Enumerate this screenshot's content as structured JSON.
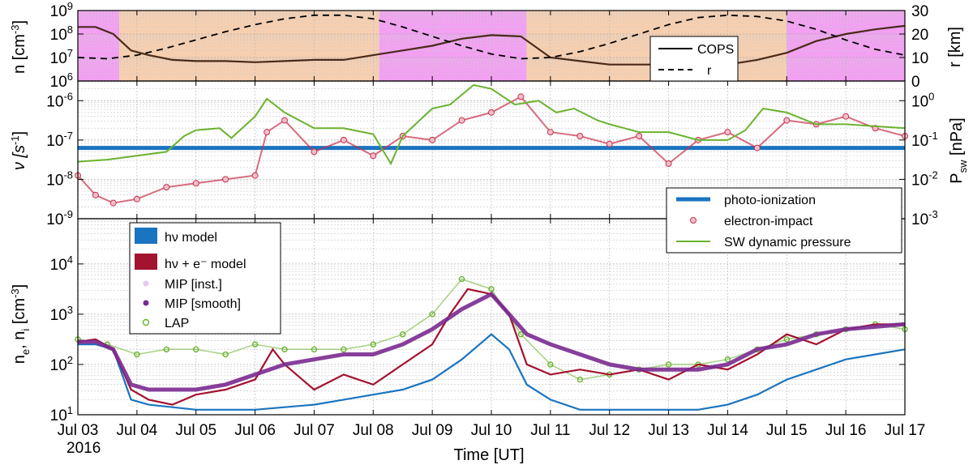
{
  "colors": {
    "magenta_shade": "#f2a0f2",
    "orange_shade": "#f6cfb0",
    "cops": "#4a2a1a",
    "photo": "#1a74c0",
    "impact_edge": "#c8304a",
    "impact_fill": "#f2c0cc",
    "sw": "#6ab32e",
    "model_e": "#a3122e",
    "mip_inst": "#e6c8f2",
    "mip_smooth": "#7a2a90",
    "lap": "#6ab32e"
  },
  "time_axis": {
    "ticks": [
      "Jul 03",
      "Jul 04",
      "Jul 05",
      "Jul 06",
      "Jul 07",
      "Jul 08",
      "Jul 09",
      "Jul 10",
      "Jul 11",
      "Jul 12",
      "Jul 13",
      "Jul 14",
      "Jul 15",
      "Jul 16",
      "Jul 17"
    ],
    "year": "2016",
    "label": "Time [UT]",
    "start_day": 3,
    "end_day": 17
  },
  "chart_data": [
    {
      "type": "line",
      "panel": "top",
      "ylabel_left": "n [cm",
      "ylabel_left_sup": "-3",
      "ylabel_left_end": "]",
      "ylabel_right": "r [km]",
      "yticks_left": [
        {
          "base": "10",
          "exp": "9"
        },
        {
          "base": "10",
          "exp": "8"
        },
        {
          "base": "10",
          "exp": "7"
        },
        {
          "base": "10",
          "exp": "6"
        }
      ],
      "ylim_left_log10": [
        6,
        9
      ],
      "yticks_right": [
        "30",
        "20",
        "10",
        "0"
      ],
      "ylim_right": [
        0,
        30
      ],
      "shaded_intervals_days": [
        {
          "start": 3.0,
          "end": 3.7,
          "kind": "magenta"
        },
        {
          "start": 3.7,
          "end": 8.1,
          "kind": "orange"
        },
        {
          "start": 8.1,
          "end": 10.6,
          "kind": "magenta"
        },
        {
          "start": 10.6,
          "end": 15.0,
          "kind": "orange"
        },
        {
          "start": 15.0,
          "end": 17.0,
          "kind": "magenta"
        }
      ],
      "series": [
        {
          "name": "COPS",
          "style": "solid",
          "x": [
            3.0,
            3.3,
            3.6,
            3.9,
            4.2,
            4.6,
            5.0,
            5.5,
            6.0,
            6.5,
            7.0,
            7.5,
            8.0,
            8.5,
            9.0,
            9.5,
            10.0,
            10.5,
            11.0,
            11.5,
            12.0,
            12.5,
            13.0,
            13.5,
            14.0,
            14.5,
            15.0,
            15.5,
            16.0,
            16.5,
            17.0
          ],
          "y_log10": [
            8.3,
            8.3,
            8.0,
            7.3,
            7.1,
            6.9,
            6.85,
            6.85,
            6.8,
            6.85,
            6.9,
            6.9,
            7.1,
            7.3,
            7.5,
            7.8,
            7.95,
            7.9,
            7.0,
            6.85,
            6.7,
            6.7,
            6.7,
            6.65,
            6.7,
            6.9,
            7.2,
            7.7,
            8.0,
            8.2,
            8.35
          ]
        },
        {
          "name": "r",
          "style": "dashed",
          "x": [
            3.0,
            3.5,
            4.0,
            4.5,
            5.0,
            5.5,
            6.0,
            6.5,
            7.0,
            7.5,
            8.0,
            8.5,
            9.0,
            9.5,
            10.0,
            10.5,
            11.0,
            11.5,
            12.0,
            12.5,
            13.0,
            13.5,
            14.0,
            14.5,
            15.0,
            15.5,
            16.0,
            16.5,
            17.0
          ],
          "y": [
            10,
            9.5,
            11,
            14,
            17.5,
            21,
            24,
            26.5,
            28,
            28,
            26.5,
            23,
            19,
            15,
            11.5,
            9.5,
            10,
            12.5,
            16,
            20,
            24,
            27,
            28,
            27.5,
            25.5,
            22,
            17.5,
            13.5,
            11
          ]
        }
      ],
      "legend": [
        "COPS",
        "r"
      ],
      "legend_position": "top-right"
    },
    {
      "type": "line",
      "panel": "middle",
      "ylabel_left": "ν [s",
      "ylabel_left_sup": "-1",
      "ylabel_left_end": "]",
      "ylabel_right": "P",
      "ylabel_right_sub": "sw",
      "ylabel_right_end": " [nPa]",
      "yticks_left": [
        {
          "base": "10",
          "exp": "-6"
        },
        {
          "base": "10",
          "exp": "-7"
        },
        {
          "base": "10",
          "exp": "-8"
        },
        {
          "base": "10",
          "exp": "-9"
        }
      ],
      "ylim_left_log10": [
        -9,
        -5.5
      ],
      "yticks_right": [
        {
          "base": "10",
          "exp": "0"
        },
        {
          "base": "10",
          "exp": "-1"
        },
        {
          "base": "10",
          "exp": "-2"
        },
        {
          "base": "10",
          "exp": "-3"
        }
      ],
      "ylim_right_log10": [
        -3,
        0.5
      ],
      "series": [
        {
          "name": "photo-ionization",
          "axis": "left",
          "x": [
            3.0,
            17.0
          ],
          "y_log10": [
            -7.2,
            -7.2
          ]
        },
        {
          "name": "electron-impact",
          "axis": "left",
          "x": [
            3.0,
            3.3,
            3.6,
            4.0,
            4.5,
            5.0,
            5.5,
            6.0,
            6.2,
            6.5,
            7.0,
            7.5,
            8.0,
            8.5,
            9.0,
            9.5,
            10.0,
            10.5,
            11.0,
            11.5,
            12.0,
            12.5,
            13.0,
            13.5,
            14.0,
            14.5,
            15.0,
            15.5,
            16.0,
            16.5,
            17.0
          ],
          "y_log10": [
            -7.9,
            -8.4,
            -8.6,
            -8.5,
            -8.2,
            -8.1,
            -8.0,
            -7.9,
            -6.8,
            -6.5,
            -7.3,
            -7.0,
            -7.4,
            -6.9,
            -7.0,
            -6.5,
            -6.3,
            -5.9,
            -6.8,
            -6.9,
            -7.1,
            -6.9,
            -7.6,
            -7.0,
            -6.8,
            -7.2,
            -6.5,
            -6.6,
            -6.4,
            -6.7,
            -6.9
          ]
        },
        {
          "name": "SW dynamic pressure",
          "axis": "right",
          "x": [
            3.0,
            3.5,
            4.0,
            4.5,
            4.8,
            5.0,
            5.4,
            5.6,
            6.0,
            6.2,
            6.5,
            7.0,
            7.5,
            8.0,
            8.3,
            8.5,
            9.0,
            9.3,
            9.7,
            10.0,
            10.4,
            10.8,
            11.1,
            11.4,
            11.8,
            12.0,
            12.5,
            13.0,
            13.5,
            14.0,
            14.3,
            14.6,
            15.0,
            15.5,
            16.0,
            16.5,
            17.0
          ],
          "y_log10": [
            -1.55,
            -1.5,
            -1.4,
            -1.3,
            -0.9,
            -0.75,
            -0.7,
            -0.95,
            -0.4,
            0.05,
            -0.3,
            -0.7,
            -0.7,
            -0.85,
            -1.6,
            -0.9,
            -0.2,
            -0.1,
            0.4,
            0.3,
            -0.1,
            0.0,
            -0.3,
            -0.2,
            -0.5,
            -0.6,
            -0.8,
            -0.8,
            -1.0,
            -1.0,
            -0.75,
            -0.2,
            -0.3,
            -0.6,
            -0.6,
            -0.65,
            -0.7
          ]
        }
      ],
      "legend": [
        "photo-ionization",
        "electron-impact",
        "SW dynamic pressure"
      ],
      "legend_position": "bottom-right"
    },
    {
      "type": "line",
      "panel": "bottom",
      "ylabel": "n",
      "ylabel_sub1": "e",
      "ylabel_mid": ", n",
      "ylabel_sub2": "i",
      "ylabel_unit": " [cm",
      "ylabel_sup": "-3",
      "ylabel_end": "]",
      "yticks": [
        {
          "base": "10",
          "exp": "4"
        },
        {
          "base": "10",
          "exp": "3"
        },
        {
          "base": "10",
          "exp": "2"
        },
        {
          "base": "10",
          "exp": "1"
        }
      ],
      "ylim_log10": [
        1,
        4.9
      ],
      "series": [
        {
          "name": "hν model",
          "x": [
            3.0,
            3.3,
            3.6,
            3.9,
            4.2,
            4.6,
            5.0,
            5.5,
            6.0,
            6.5,
            7.0,
            7.5,
            8.0,
            8.5,
            9.0,
            9.5,
            10.0,
            10.3,
            10.6,
            11.0,
            11.5,
            12.0,
            12.5,
            13.0,
            13.5,
            14.0,
            14.5,
            15.0,
            15.5,
            16.0,
            16.5,
            17.0
          ],
          "y_log10": [
            2.4,
            2.4,
            2.3,
            1.3,
            1.2,
            1.15,
            1.1,
            1.1,
            1.1,
            1.15,
            1.2,
            1.3,
            1.4,
            1.5,
            1.7,
            2.1,
            2.6,
            2.3,
            1.6,
            1.3,
            1.1,
            1.1,
            1.1,
            1.1,
            1.1,
            1.2,
            1.4,
            1.7,
            1.9,
            2.1,
            2.2,
            2.3
          ]
        },
        {
          "name": "hν + e⁻ model",
          "x": [
            3.0,
            3.3,
            3.6,
            3.9,
            4.2,
            4.6,
            5.0,
            5.5,
            6.0,
            6.3,
            6.5,
            7.0,
            7.5,
            8.0,
            8.5,
            9.0,
            9.3,
            9.6,
            10.0,
            10.3,
            10.6,
            11.0,
            11.5,
            12.0,
            12.5,
            13.0,
            13.5,
            14.0,
            14.5,
            15.0,
            15.5,
            16.0,
            16.5,
            17.0
          ],
          "y_log10": [
            2.45,
            2.5,
            2.3,
            1.5,
            1.3,
            1.2,
            1.4,
            1.5,
            1.7,
            2.3,
            2.0,
            1.5,
            1.8,
            1.6,
            2.0,
            2.4,
            3.0,
            3.5,
            3.4,
            3.0,
            2.0,
            1.8,
            1.9,
            1.8,
            1.9,
            1.7,
            2.0,
            1.9,
            2.2,
            2.6,
            2.4,
            2.7,
            2.8,
            2.8
          ]
        },
        {
          "name": "MIP [smooth]",
          "x": [
            3.0,
            3.3,
            3.6,
            3.9,
            4.2,
            4.6,
            5.0,
            5.5,
            6.0,
            6.5,
            7.0,
            7.5,
            8.0,
            8.5,
            9.0,
            9.5,
            10.0,
            10.3,
            10.6,
            11.0,
            11.5,
            12.0,
            12.5,
            13.0,
            13.5,
            14.0,
            14.5,
            15.0,
            15.5,
            16.0,
            16.5,
            17.0
          ],
          "y_log10": [
            2.45,
            2.45,
            2.3,
            1.6,
            1.5,
            1.5,
            1.5,
            1.6,
            1.8,
            2.0,
            2.1,
            2.2,
            2.2,
            2.4,
            2.7,
            3.1,
            3.4,
            3.0,
            2.6,
            2.4,
            2.2,
            2.0,
            1.9,
            1.9,
            1.9,
            2.0,
            2.3,
            2.4,
            2.6,
            2.7,
            2.75,
            2.8
          ]
        },
        {
          "name": "LAP",
          "x": [
            3.0,
            3.5,
            4.0,
            4.5,
            5.0,
            5.5,
            6.0,
            6.5,
            7.0,
            7.5,
            8.0,
            8.5,
            9.0,
            9.5,
            10.0,
            10.5,
            11.0,
            11.5,
            12.0,
            12.5,
            13.0,
            13.5,
            14.0,
            14.5,
            15.0,
            15.5,
            16.0,
            16.5,
            17.0
          ],
          "y_log10": [
            2.5,
            2.4,
            2.2,
            2.3,
            2.3,
            2.2,
            2.4,
            2.3,
            2.3,
            2.3,
            2.4,
            2.6,
            3.0,
            3.7,
            3.5,
            2.6,
            2.0,
            1.7,
            1.8,
            1.9,
            2.0,
            2.0,
            2.1,
            2.3,
            2.5,
            2.6,
            2.7,
            2.8,
            2.7
          ]
        }
      ],
      "legend": [
        "hν model",
        "hν + e⁻ model",
        "MIP [inst.]",
        "MIP [smooth]",
        "LAP"
      ],
      "legend_position": "top-left"
    }
  ]
}
